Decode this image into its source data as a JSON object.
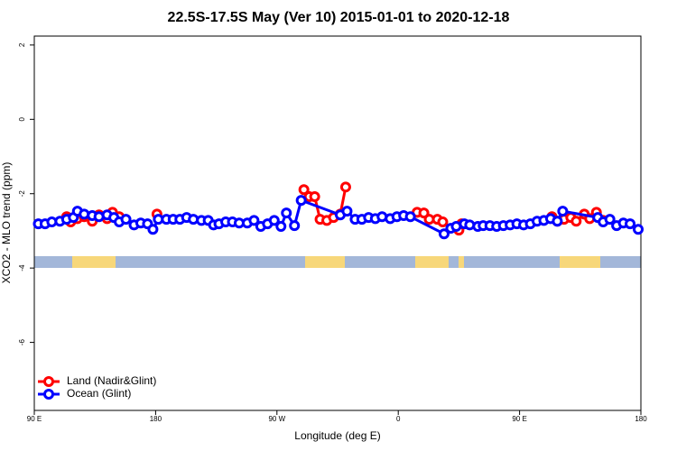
{
  "chart_data": {
    "type": "line",
    "title": "22.5S-17.5S May (Ver 10)   2015-01-01 to 2020-12-18",
    "x_label": "Longitude (deg E)",
    "y_label": "XCO2 - MLO trend (ppm)",
    "xlim": [
      90,
      540
    ],
    "ylim": [
      -7.83,
      2.24
    ],
    "xticks": [
      {
        "value": 90,
        "label": "90 E"
      },
      180,
      {
        "value": 270,
        "label": "90 W"
      },
      {
        "value": 360,
        "label": "0"
      },
      {
        "value": 450,
        "label": "90 E"
      },
      {
        "value": 540,
        "label": "180"
      }
    ],
    "yticks": [
      2,
      0,
      -2,
      -4,
      -6
    ],
    "legend": "bottom-left",
    "series": [
      {
        "name": "Land (Nadir&Glint)",
        "color": "#ff0000",
        "x": [
          114,
          117,
          122,
          127,
          133,
          138,
          144,
          148,
          153,
          null,
          181,
          null,
          290,
          294,
          298,
          302,
          307,
          312,
          317,
          321,
          null,
          374,
          379,
          383,
          389,
          393,
          null,
          405,
          407,
          null,
          474,
          478,
          483,
          488,
          492,
          498,
          502,
          507,
          512
        ],
        "values": [
          -2.62,
          -2.76,
          -2.67,
          -2.62,
          -2.74,
          -2.57,
          -2.67,
          -2.5,
          -2.62,
          null,
          -2.55,
          null,
          -1.89,
          -2.08,
          -2.08,
          -2.69,
          -2.72,
          -2.64,
          -2.55,
          -1.82,
          null,
          -2.5,
          -2.52,
          -2.69,
          -2.69,
          -2.76,
          null,
          -2.98,
          -2.81,
          null,
          -2.62,
          -2.74,
          -2.69,
          -2.64,
          -2.74,
          -2.55,
          -2.67,
          -2.5,
          -2.72
        ]
      },
      {
        "name": "Ocean (Glint)",
        "color": "#0000ff",
        "x": [
          93,
          98,
          103,
          109,
          114,
          119,
          122,
          127,
          133,
          138,
          144,
          149,
          153,
          158,
          164,
          169,
          174,
          178,
          182,
          188,
          193,
          198,
          203,
          208,
          214,
          219,
          223,
          227,
          232,
          237,
          242,
          248,
          253,
          258,
          263,
          268,
          273,
          277,
          283,
          288,
          317,
          322,
          328,
          333,
          338,
          343,
          348,
          354,
          359,
          364,
          369,
          394,
          399,
          403,
          409,
          413,
          419,
          423,
          428,
          433,
          438,
          443,
          448,
          453,
          458,
          463,
          468,
          473,
          478,
          482,
          508,
          512,
          517,
          522,
          527,
          532,
          538
        ],
        "values": [
          -2.81,
          -2.81,
          -2.76,
          -2.74,
          -2.69,
          -2.64,
          -2.47,
          -2.55,
          -2.59,
          -2.62,
          -2.57,
          -2.64,
          -2.76,
          -2.69,
          -2.84,
          -2.79,
          -2.81,
          -2.96,
          -2.69,
          -2.69,
          -2.69,
          -2.69,
          -2.64,
          -2.69,
          -2.72,
          -2.72,
          -2.84,
          -2.81,
          -2.76,
          -2.76,
          -2.79,
          -2.79,
          -2.72,
          -2.88,
          -2.81,
          -2.72,
          -2.88,
          -2.52,
          -2.86,
          -2.18,
          -2.57,
          -2.47,
          -2.69,
          -2.69,
          -2.64,
          -2.67,
          -2.62,
          -2.67,
          -2.62,
          -2.59,
          -2.62,
          -3.08,
          -2.93,
          -2.88,
          -2.81,
          -2.84,
          -2.88,
          -2.86,
          -2.86,
          -2.88,
          -2.86,
          -2.84,
          -2.81,
          -2.84,
          -2.81,
          -2.74,
          -2.72,
          -2.67,
          -2.74,
          -2.47,
          -2.64,
          -2.76,
          -2.69,
          -2.86,
          -2.79,
          -2.81,
          -2.96
        ]
      }
    ]
  }
}
